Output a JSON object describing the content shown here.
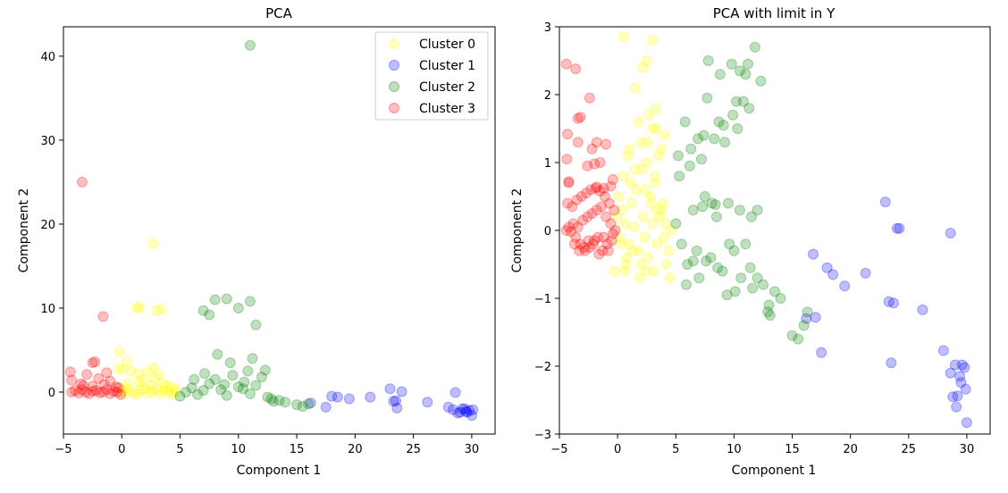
{
  "chart_data": [
    {
      "type": "scatter",
      "title": "PCA",
      "xlabel": "Component 1",
      "ylabel": "Component 2",
      "xlim": [
        -5,
        32
      ],
      "ylim": [
        -5,
        43.5
      ],
      "xticks": [
        -5,
        0,
        5,
        10,
        15,
        20,
        25,
        30
      ],
      "yticks": [
        0,
        10,
        20,
        30,
        40
      ],
      "grid": false,
      "legend": "top-right",
      "series": [
        {
          "name": "Cluster 0",
          "color": "#ffff00",
          "x": [
            0,
            0.3,
            0.6,
            1,
            1.3,
            1.6,
            2,
            2.3,
            2.6,
            3,
            3.3,
            3.6,
            4,
            4.3,
            4.6,
            0.5,
            1.5,
            2.5,
            3.5,
            4.2,
            0.2,
            1.8,
            2.8,
            3.8,
            -0.3,
            0.1,
            -0.2,
            0.4,
            0.8,
            1.4,
            2.2,
            2.7,
            3.2,
            1.3,
            3,
            1.5,
            2.7,
            3.4,
            4.6
          ],
          "y": [
            0.1,
            -0.2,
            0.3,
            0,
            -0.3,
            0.2,
            0.4,
            -0.1,
            0.1,
            0.3,
            -0.2,
            0.2,
            0.1,
            -0.3,
            0,
            1,
            1.2,
            0.8,
            1.1,
            0.6,
            0.5,
            1.4,
            1.6,
            0.7,
            2.8,
            2.7,
            4.8,
            3.6,
            2.5,
            2.2,
            2.4,
            2.9,
            2.1,
            10,
            9.7,
            10.1,
            17.7,
            9.9,
            0.4
          ]
        },
        {
          "name": "Cluster 1",
          "color": "#0000ff",
          "x": [
            16.2,
            17.5,
            18,
            18.5,
            19.5,
            21.3,
            23,
            23.3,
            23.6,
            24,
            23.5,
            26.2,
            28,
            28.4,
            28.6,
            29,
            29.2,
            29.5,
            29.8,
            30,
            29.4,
            28.8,
            30.1,
            29.6
          ],
          "y": [
            -1.3,
            -1.8,
            -0.5,
            -0.6,
            -0.8,
            -0.6,
            0.4,
            -1.1,
            -1.9,
            0.05,
            -1.05,
            -1.2,
            -1.8,
            -2.1,
            -0.05,
            -2.4,
            -2,
            -2.3,
            -2.2,
            -2.8,
            -2,
            -2.5,
            -2.1,
            -2.4
          ]
        },
        {
          "name": "Cluster 2",
          "color": "#008000",
          "x": [
            5,
            5.5,
            6,
            6.5,
            7,
            7.5,
            8,
            8.5,
            9,
            9.5,
            10,
            10.5,
            11,
            11.5,
            12,
            12.5,
            13,
            14,
            15,
            15.5,
            16,
            7,
            7.5,
            8,
            9,
            10,
            11,
            11.5,
            8.2,
            9.3,
            11.2,
            10.8,
            12.3,
            7.1,
            6.2,
            8.8,
            10.4,
            12.8,
            13.5
          ],
          "y": [
            -0.5,
            0,
            0.5,
            -0.3,
            0.2,
            1,
            1.5,
            0.3,
            -0.4,
            2,
            0.6,
            1.2,
            -0.2,
            0.8,
            1.8,
            -0.6,
            -1.1,
            -1.2,
            -1.5,
            -1.7,
            -1.4,
            9.7,
            9.2,
            11,
            11.1,
            10,
            10.8,
            8,
            4.5,
            3.5,
            4,
            2.5,
            2.6,
            2.2,
            1.5,
            0.9,
            0.4,
            -0.8,
            -1
          ],
          "x2": [
            11
          ],
          "y2": [
            41.3
          ]
        },
        {
          "name": "Cluster 3",
          "color": "#ff0000",
          "x": [
            -4.3,
            -4,
            -3.7,
            -3.4,
            -3.1,
            -2.8,
            -2.5,
            -2.2,
            -1.9,
            -1.6,
            -1.3,
            -1,
            -0.7,
            -0.4,
            -0.1,
            -3.5,
            -2.5,
            -1.5,
            -0.5,
            -4.4,
            -3,
            -2,
            -1,
            -4.3,
            -3.3,
            -2.3,
            -1.3,
            -0.3,
            -2.5,
            -1.6,
            -3.4
          ],
          "y": [
            0,
            0.2,
            -0.1,
            0.3,
            0,
            -0.2,
            0.1,
            0.2,
            -0.1,
            0,
            0.3,
            -0.2,
            0.1,
            0,
            -0.3,
            1,
            0.7,
            0.9,
            0.6,
            2.4,
            2.1,
            1.6,
            1.3,
            1.4,
            0.8,
            3.6,
            2.3,
            0.5,
            3.5,
            9,
            25
          ]
        }
      ]
    },
    {
      "type": "scatter",
      "title": "PCA with limit in Y",
      "xlabel": "Component 1",
      "ylabel": "Component 2",
      "xlim": [
        -5,
        32
      ],
      "ylim": [
        -3,
        3
      ],
      "xticks": [
        -5,
        0,
        5,
        10,
        15,
        20,
        25,
        30
      ],
      "yticks": [
        -3,
        -2,
        -1,
        0,
        1,
        2,
        3
      ],
      "ytick_labels": [
        "−3",
        "−2",
        "−1",
        "0",
        "1",
        "2",
        "3"
      ],
      "xtick_labels": [
        "−5",
        "0",
        "5",
        "10",
        "15",
        "20",
        "25",
        "30"
      ],
      "grid": false,
      "legend": "none",
      "series": [
        {
          "name": "Cluster 0",
          "color": "#ffff00",
          "x": [
            0.2,
            0.6,
            1,
            1.4,
            1.8,
            2.2,
            2.6,
            3,
            3.4,
            3.8,
            4.2,
            4.6,
            0.4,
            1.2,
            2,
            2.8,
            3.6,
            4.4,
            0.8,
            1.6,
            2.4,
            3.2,
            4,
            0.5,
            1.5,
            2.5,
            3.5,
            1,
            2,
            3,
            4,
            1.8,
            2.7,
            3.3,
            0.3,
            0.7,
            1.3,
            2.3,
            3.1,
            3.9,
            0.1,
            1.1,
            2.1,
            3.2,
            4.1,
            -0.1,
            0.9,
            2.6,
            3.3,
            2.5,
            3,
            1.5,
            2.2,
            3.8,
            4.5,
            0.6,
            1.9,
            0.5,
            2.4,
            3.4,
            -0.3,
            2.9
          ],
          "y": [
            -0.1,
            0.1,
            -0.2,
            0.05,
            -0.3,
            0.2,
            -0.4,
            0.1,
            -0.2,
            0.3,
            -0.5,
            0,
            0.3,
            0.4,
            -0.5,
            0.5,
            0.2,
            -0.3,
            -0.4,
            0.6,
            -0.6,
            0.7,
            -0.1,
            0.8,
            0.9,
            1,
            1.1,
            1.2,
            1.3,
            1.5,
            1.4,
            1.6,
            1.7,
            1.8,
            -0.2,
            -0.5,
            -0.3,
            -0.1,
            -0.6,
            0.4,
            0.5,
            0.7,
            0.9,
            0.8,
            0.1,
            0.2,
            1.1,
            1.3,
            1.5,
            2.5,
            2.8,
            2.1,
            2.4,
            1.2,
            -0.7,
            -0.6,
            -0.7,
            2.85,
            0.6,
            0.3,
            -0.6,
            0.4
          ]
        },
        {
          "name": "Cluster 1",
          "color": "#0000ff",
          "x": [
            16.2,
            16.8,
            17,
            17.5,
            18,
            18.5,
            19.5,
            21.3,
            23,
            23.3,
            23.5,
            23.7,
            24,
            24.2,
            26.2,
            28,
            28.6,
            28.6,
            29,
            29.2,
            29.4,
            29.8,
            30,
            29.5,
            29.1,
            29.9,
            29.6,
            28.8
          ],
          "y": [
            -1.3,
            -0.35,
            -1.28,
            -1.8,
            -0.55,
            -0.65,
            -0.82,
            -0.63,
            0.42,
            -1.05,
            -1.95,
            -1.07,
            0.03,
            0.03,
            -1.17,
            -1.77,
            -0.04,
            -2.1,
            -1.98,
            -2.44,
            -2.15,
            -2.02,
            -2.83,
            -2.24,
            -2.6,
            -2.34,
            -1.98,
            -2.45
          ]
        },
        {
          "name": "Cluster 2",
          "color": "#008000",
          "x": [
            5,
            5.5,
            6,
            6.5,
            7,
            7.5,
            8,
            8.5,
            9,
            9.5,
            10,
            10.5,
            11,
            11.5,
            12,
            12.5,
            13,
            13.5,
            14,
            15,
            15.5,
            16,
            16.3,
            5.3,
            6.2,
            7.2,
            8.3,
            9.2,
            10.3,
            11.3,
            12.3,
            7.8,
            8.8,
            9.8,
            10.8,
            11.8,
            6.8,
            7.6,
            8.6,
            9.6,
            10.6,
            11.6,
            12,
            10.5,
            11,
            11.2,
            10.2,
            9.9,
            9.1,
            8.7,
            7.7,
            7.4,
            6.9,
            6.3,
            5.8,
            5.2,
            9.4,
            10.1,
            11.4,
            12.9,
            13.1,
            7.3,
            8.1,
            8.4,
            6.5,
            5.9
          ],
          "y": [
            0.1,
            -0.2,
            -0.5,
            0.3,
            -0.7,
            0.5,
            -0.4,
            0.2,
            -0.6,
            0.4,
            -0.3,
            0.3,
            -0.2,
            0.2,
            -0.7,
            -0.8,
            -1.1,
            -0.9,
            -1,
            -1.55,
            -1.6,
            -1.4,
            -1.2,
            0.8,
            0.95,
            1.05,
            1.35,
            1.3,
            1.5,
            1.8,
            2.2,
            2.5,
            2.3,
            2.45,
            1.9,
            2.7,
            -0.3,
            -0.45,
            -0.55,
            -0.2,
            -0.7,
            -0.85,
            0.3,
            2.35,
            2.3,
            2.45,
            1.9,
            1.7,
            1.55,
            1.6,
            1.95,
            1.4,
            1.35,
            1.2,
            1.6,
            1.1,
            -0.95,
            -0.9,
            -0.55,
            -1.2,
            -1.25,
            0.35,
            0.4,
            0.38,
            -0.45,
            -0.8
          ]
        },
        {
          "name": "Cluster 3",
          "color": "#ff0000",
          "x": [
            -4.4,
            -4.2,
            -4,
            -3.8,
            -3.6,
            -3.4,
            -3.2,
            -3,
            -2.8,
            -2.6,
            -2.4,
            -2.2,
            -2,
            -1.8,
            -1.6,
            -1.4,
            -1.2,
            -1,
            -0.8,
            -0.6,
            -0.4,
            -0.2,
            -4.3,
            -3.9,
            -3.5,
            -3.1,
            -2.7,
            -2.3,
            -1.9,
            -1.5,
            -1.1,
            -0.7,
            -0.3,
            -3.7,
            -3.3,
            -2.9,
            -2.5,
            -2.1,
            -1.7,
            -1.3,
            -0.9,
            -0.5,
            -4.2,
            -2.6,
            -2.2,
            -1.8,
            -3.4,
            -4.35,
            -4.3,
            -4.4,
            -3.6,
            -3.2,
            -3.4,
            -2.4,
            -2,
            -1.5,
            -1,
            -0.4,
            -4.2,
            -1.8,
            -1.2,
            -0.6
          ],
          "y": [
            0,
            0.05,
            -0.02,
            0.1,
            -0.1,
            0.05,
            -0.2,
            0.15,
            -0.3,
            0.2,
            -0.25,
            0.25,
            -0.15,
            0.3,
            -0.35,
            0.35,
            -0.1,
            0.2,
            -0.3,
            0.1,
            -0.05,
            0,
            0.4,
            0.35,
            0.45,
            0.5,
            0.55,
            0.6,
            0.62,
            0.58,
            0.5,
            0.4,
            0.3,
            -0.2,
            -0.3,
            -0.25,
            -0.15,
            -0.2,
            -0.1,
            -0.3,
            -0.2,
            -0.15,
            0.7,
            0.95,
            1.2,
            1.3,
            1.65,
            1.05,
            1.42,
            2.45,
            2.38,
            1.67,
            1.3,
            1.95,
            0.98,
            1.0,
            1.27,
            0.75,
            0.72,
            0.64,
            0.62,
            0.65
          ]
        }
      ]
    }
  ]
}
